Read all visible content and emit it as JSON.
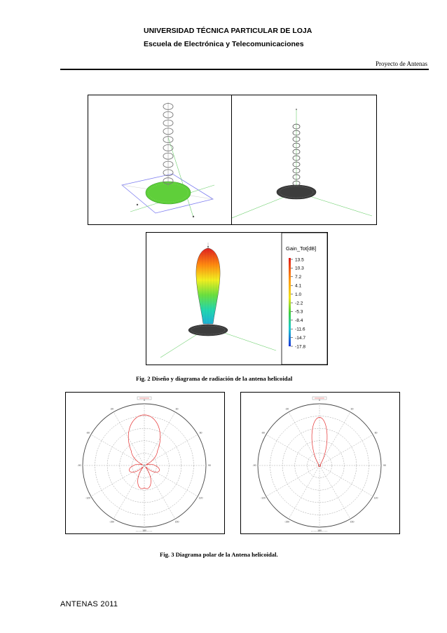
{
  "header": {
    "university": "UNIVERSIDAD TÉCNICA PARTICULAR DE LOJA",
    "school": "Escuela de Electrónica y Telecomunicaciones",
    "project": "Proyecto de Antenas"
  },
  "figure2": {
    "caption": "Fig. 2 Diseño y diagrama de radiación de la antena helicoidal",
    "legend": {
      "title": "Gain_Tot[dB]",
      "values": [
        "13.5",
        "10.3",
        "7.2",
        "4.1",
        "1.0",
        "-2.2",
        "-5.3",
        "-8.4",
        "-11.6",
        "-14.7",
        "-17.8"
      ]
    }
  },
  "figure3": {
    "caption": "Fig. 3 Diagrama polar de la Antena helicoidal.",
    "polar_ticks": [
      "0",
      "30",
      "60",
      "90",
      "120",
      "150",
      "180",
      "-150",
      "-120",
      "-90",
      "-60",
      "-30"
    ]
  },
  "footer": {
    "text": "ANTENAS  2011"
  },
  "colors": {
    "pattern_red": "#e53030",
    "ground_green": "#5fcf3a",
    "grid_gray": "#9a9a9a"
  }
}
